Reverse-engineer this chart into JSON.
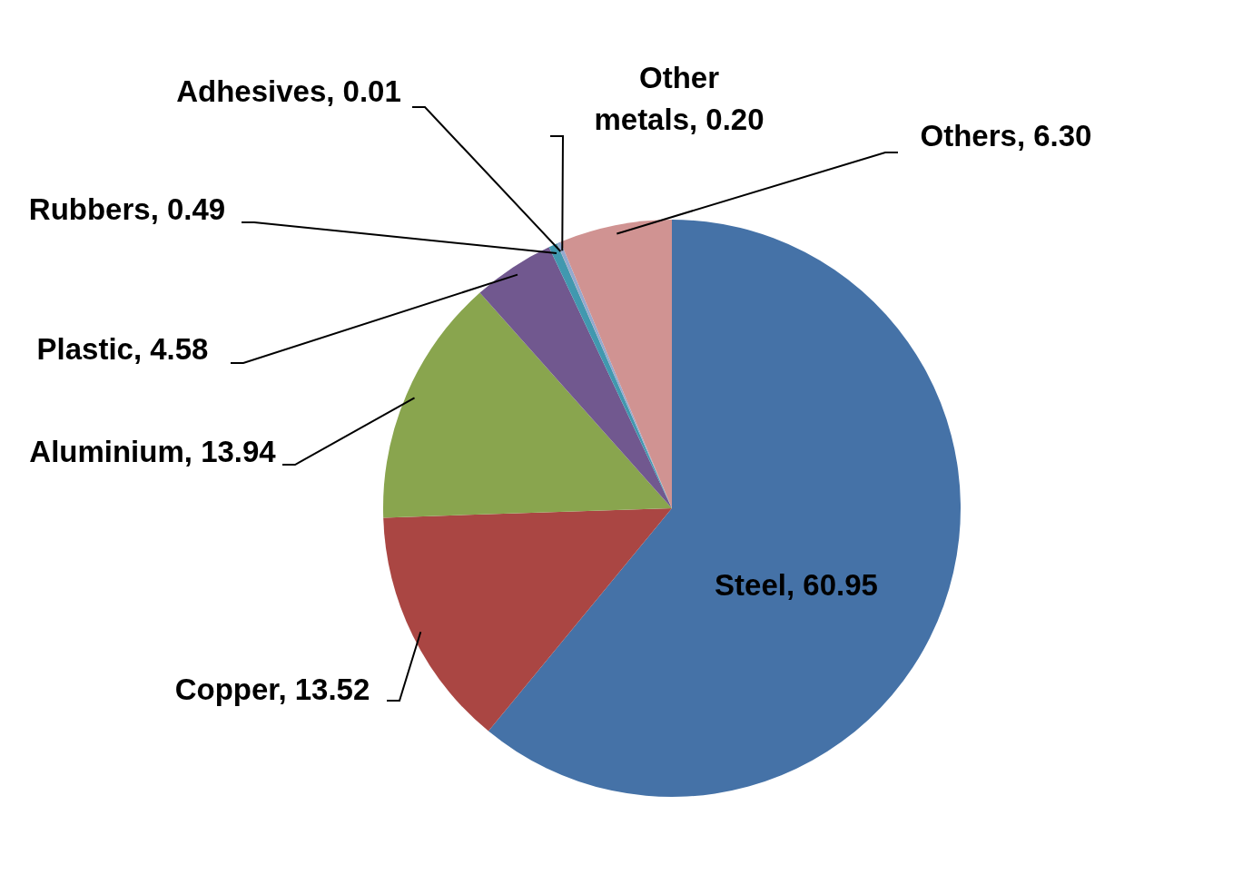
{
  "chart_data": {
    "type": "pie",
    "categories": [
      "Steel",
      "Copper",
      "Aluminium",
      "Plastic",
      "Rubbers",
      "Adhesives",
      "Other metals",
      "Others"
    ],
    "values": [
      60.95,
      13.52,
      13.94,
      4.58,
      0.49,
      0.01,
      0.2,
      6.3
    ],
    "colors": [
      "#4572a7",
      "#aa4643",
      "#89a54e",
      "#71588f",
      "#4198af",
      "#db843d",
      "#93a9cf",
      "#d09392"
    ],
    "value_labels": [
      "60.95",
      "13.52",
      "13.94",
      "4.58",
      "0.49",
      "0.01",
      "0.20",
      "6.30"
    ],
    "legend": false
  }
}
